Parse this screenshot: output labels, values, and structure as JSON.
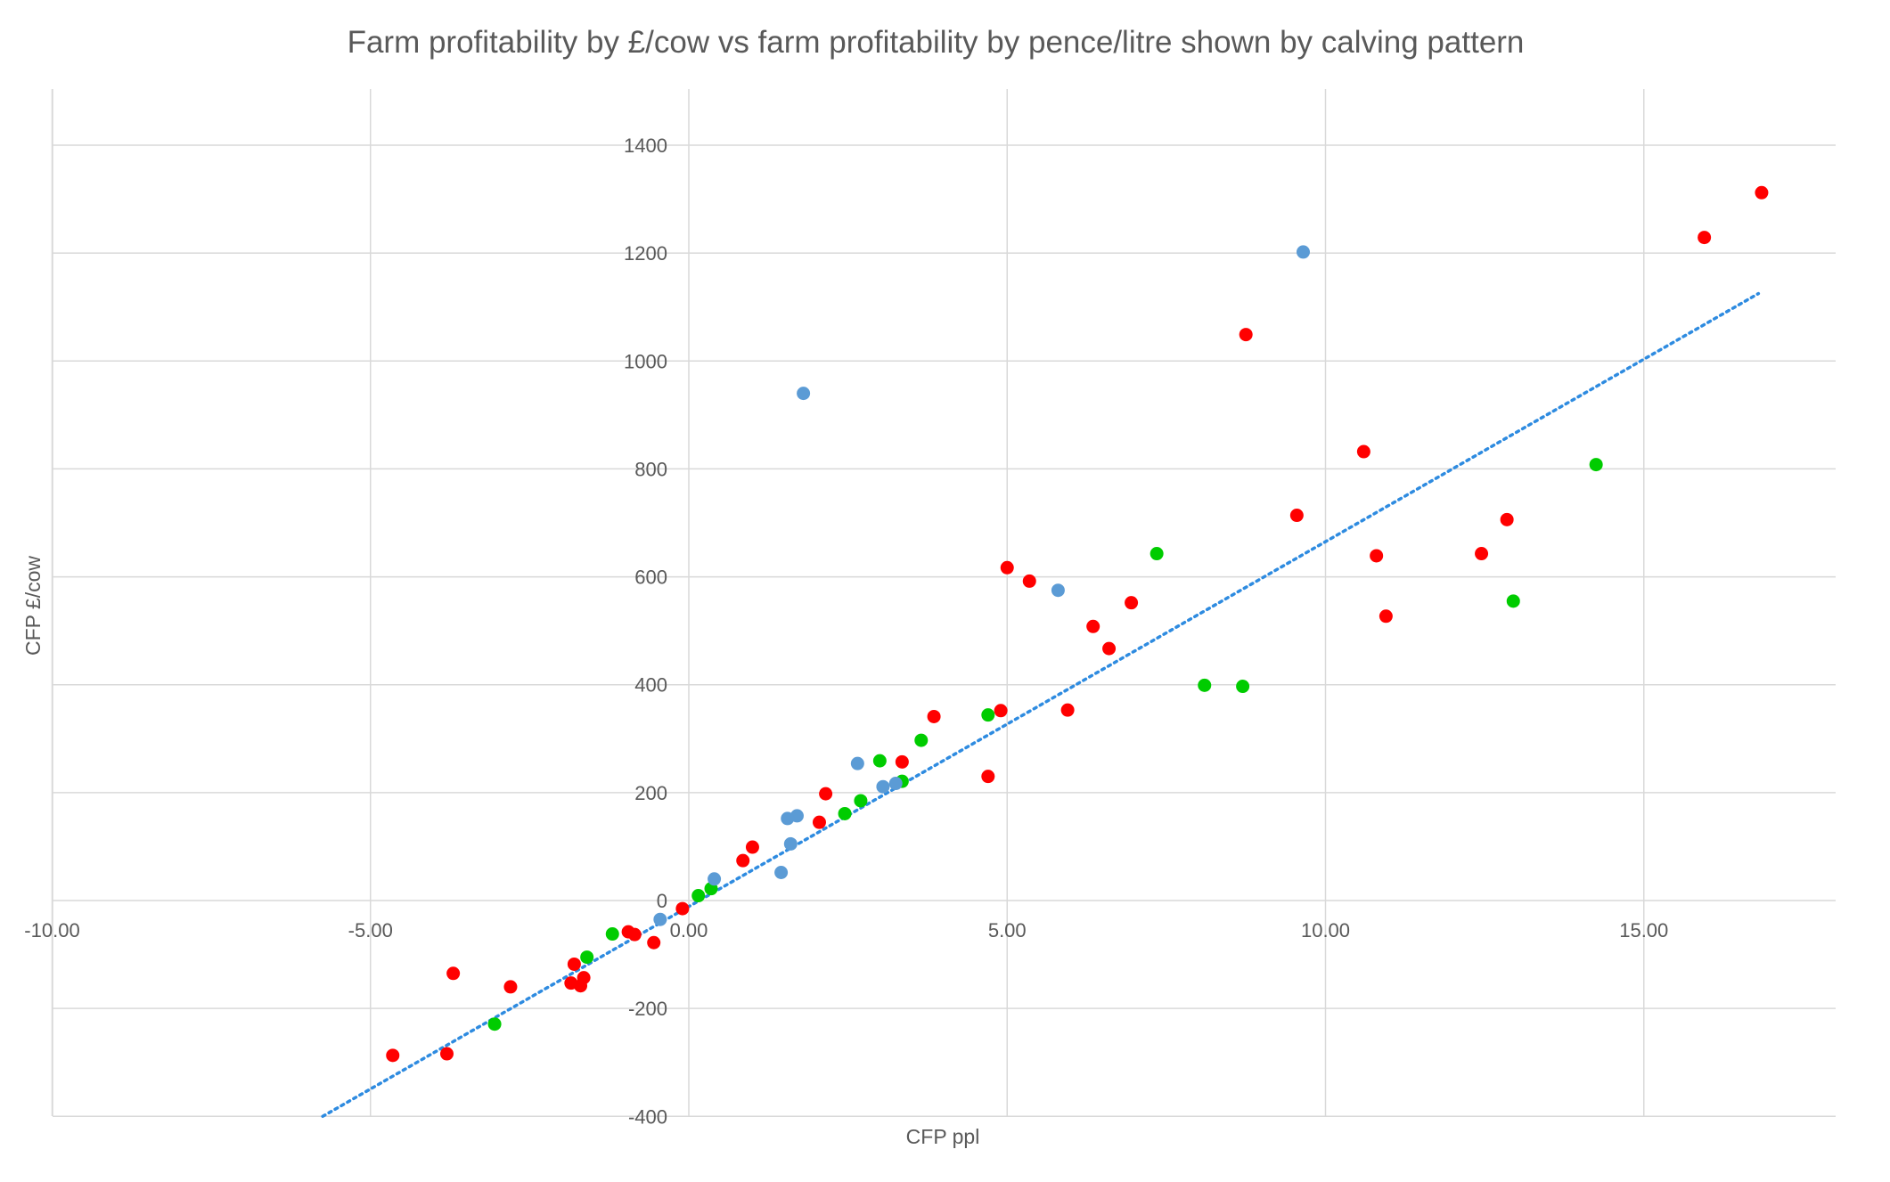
{
  "chart_data": {
    "type": "scatter",
    "title": "Farm profitability by £/cow vs farm profitability by pence/litre shown by calving pattern",
    "xlabel": "CFP ppl",
    "ylabel": "CFP £/cow",
    "xlim": [
      -10,
      18
    ],
    "ylim": [
      -400,
      1500
    ],
    "x_ticks": [
      -10,
      -5,
      0,
      5,
      10,
      15
    ],
    "x_tick_labels": [
      "-10.00",
      "-5.00",
      "0.00",
      "5.00",
      "10.00",
      "15.00"
    ],
    "y_ticks": [
      -400,
      -200,
      0,
      200,
      400,
      600,
      800,
      1000,
      1200,
      1400
    ],
    "y_tick_labels": [
      "-400",
      "-200",
      "0",
      "200",
      "400",
      "600",
      "800",
      "1000",
      "1200",
      "1400"
    ],
    "grid": true,
    "legend": "none",
    "colors": {
      "red": "#ff0000",
      "green": "#00cc00",
      "blue": "#5b9bd5",
      "trendline": "#2e8be0"
    },
    "series": [
      {
        "color": "#ff0000",
        "points": [
          [
            16.85,
            1312
          ],
          [
            15.95,
            1229
          ],
          [
            8.75,
            1049
          ],
          [
            10.6,
            832
          ],
          [
            9.55,
            714
          ],
          [
            12.85,
            706
          ],
          [
            10.8,
            639
          ],
          [
            12.45,
            643
          ],
          [
            10.95,
            527
          ],
          [
            5.0,
            617
          ],
          [
            5.35,
            592
          ],
          [
            6.95,
            552
          ],
          [
            6.35,
            508
          ],
          [
            6.6,
            467
          ],
          [
            5.95,
            353
          ],
          [
            4.9,
            352
          ],
          [
            3.85,
            341
          ],
          [
            4.7,
            230
          ],
          [
            3.35,
            257
          ],
          [
            2.15,
            198
          ],
          [
            2.05,
            145
          ],
          [
            1.0,
            99
          ],
          [
            0.85,
            74
          ],
          [
            -0.1,
            -15
          ],
          [
            -0.55,
            -78
          ],
          [
            -0.85,
            -63
          ],
          [
            -0.95,
            -58
          ],
          [
            -1.8,
            -118
          ],
          [
            -1.65,
            -143
          ],
          [
            -1.7,
            -158
          ],
          [
            -1.85,
            -153
          ],
          [
            -3.7,
            -135
          ],
          [
            -2.8,
            -160
          ],
          [
            -4.65,
            -287
          ],
          [
            -3.8,
            -284
          ]
        ]
      },
      {
        "color": "#00cc00",
        "points": [
          [
            14.25,
            808
          ],
          [
            12.95,
            555
          ],
          [
            7.35,
            643
          ],
          [
            8.1,
            399
          ],
          [
            8.7,
            397
          ],
          [
            4.7,
            344
          ],
          [
            3.65,
            297
          ],
          [
            3.0,
            259
          ],
          [
            3.35,
            221
          ],
          [
            2.7,
            185
          ],
          [
            2.45,
            161
          ],
          [
            0.35,
            22
          ],
          [
            0.15,
            9
          ],
          [
            -1.2,
            -62
          ],
          [
            -1.6,
            -105
          ],
          [
            -3.05,
            -229
          ]
        ]
      },
      {
        "color": "#5b9bd5",
        "points": [
          [
            9.65,
            1202
          ],
          [
            1.8,
            940
          ],
          [
            5.8,
            575
          ],
          [
            2.65,
            254
          ],
          [
            3.05,
            211
          ],
          [
            3.25,
            217
          ],
          [
            1.7,
            157
          ],
          [
            1.55,
            152
          ],
          [
            1.6,
            105
          ],
          [
            1.45,
            52
          ],
          [
            0.4,
            40
          ],
          [
            -0.45,
            -35
          ]
        ]
      }
    ],
    "trendline": {
      "style": "dotted",
      "x": [
        -5.75,
        16.8
      ],
      "y": [
        -400,
        1125
      ]
    }
  }
}
